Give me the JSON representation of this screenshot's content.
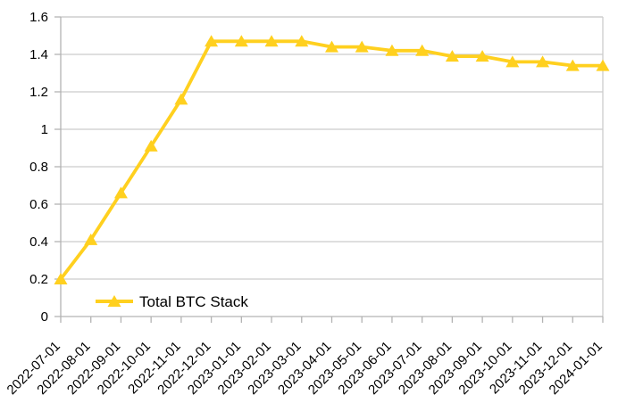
{
  "chart_data": {
    "type": "line",
    "x": [
      "2022-07-01",
      "2022-08-01",
      "2022-09-01",
      "2022-10-01",
      "2022-11-01",
      "2022-12-01",
      "2023-01-01",
      "2023-02-01",
      "2023-03-01",
      "2023-04-01",
      "2023-05-01",
      "2023-06-01",
      "2023-07-01",
      "2023-08-01",
      "2023-09-01",
      "2023-10-01",
      "2023-11-01",
      "2023-12-01",
      "2024-01-01"
    ],
    "series": [
      {
        "name": "Total BTC Stack",
        "marker": "triangle",
        "color": "#FFD01F",
        "values": [
          0.2,
          0.41,
          0.66,
          0.91,
          1.16,
          1.47,
          1.47,
          1.47,
          1.47,
          1.44,
          1.44,
          1.42,
          1.42,
          1.39,
          1.39,
          1.36,
          1.36,
          1.34,
          1.34
        ]
      }
    ],
    "ylim": [
      0,
      1.6
    ],
    "y_ticks": [
      0,
      0.2,
      0.4,
      0.6,
      0.8,
      1,
      1.2,
      1.4,
      1.6
    ],
    "y_tick_labels": [
      "0",
      "0.2",
      "0.4",
      "0.6",
      "0.8",
      "1",
      "1.2",
      "1.4",
      "1.6"
    ],
    "xlabel": "",
    "ylabel": "",
    "grid": "horizontal",
    "legend": {
      "position": "inside-bottom-left"
    },
    "colors": {
      "series": "#FFD01F",
      "gridline": "#cccccc",
      "axis": "#b3b3b3",
      "text": "#000000",
      "background": "#ffffff"
    }
  }
}
